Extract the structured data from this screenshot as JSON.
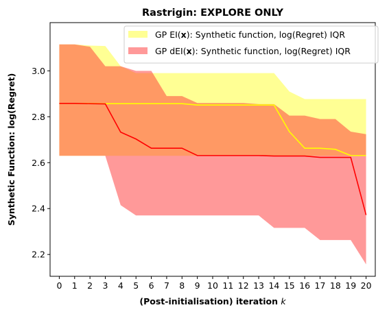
{
  "chart_data": {
    "type": "area",
    "title": "Rastrigin: EXPLORE ONLY",
    "xlabel": "(Post-initialisation) iteration",
    "xlabel_var": "k",
    "ylabel": "Synthetic Function: log(Regret)",
    "xlim": [
      -0.6,
      20.6
    ],
    "ylim": [
      2.105,
      3.21
    ],
    "x": [
      0,
      1,
      2,
      3,
      4,
      5,
      6,
      7,
      8,
      9,
      10,
      11,
      12,
      13,
      14,
      15,
      16,
      17,
      18,
      19,
      20
    ],
    "xticks": [
      0,
      1,
      2,
      3,
      4,
      5,
      6,
      7,
      8,
      9,
      10,
      11,
      12,
      13,
      14,
      15,
      16,
      17,
      18,
      19,
      20
    ],
    "yticks": [
      2.2,
      2.4,
      2.6,
      2.8,
      3.0
    ],
    "ytick_labels": [
      "2.2",
      "2.4",
      "2.6",
      "2.8",
      "3.0"
    ],
    "grid": false,
    "legend_position": "top-right",
    "series": [
      {
        "name_prefix": "GP EI(",
        "name_bold": "x",
        "name_suffix": "):   Synthetic function, log(Regret) IQR",
        "color": "#ffff00",
        "fill_color": "#ffff66",
        "fill_opacity": 0.7,
        "median": [
          2.858,
          2.858,
          2.858,
          2.857,
          2.857,
          2.857,
          2.857,
          2.857,
          2.857,
          2.851,
          2.851,
          2.851,
          2.851,
          2.851,
          2.851,
          2.735,
          2.663,
          2.663,
          2.658,
          2.631,
          2.631
        ],
        "upper": [
          3.115,
          3.115,
          3.11,
          3.108,
          3.02,
          2.99,
          2.99,
          2.99,
          2.99,
          2.99,
          2.99,
          2.99,
          2.99,
          2.99,
          2.99,
          2.91,
          2.877,
          2.877,
          2.877,
          2.877,
          2.877
        ],
        "lower": [
          2.63,
          2.63,
          2.63,
          2.63,
          2.63,
          2.63,
          2.63,
          2.63,
          2.63,
          2.63,
          2.63,
          2.63,
          2.63,
          2.63,
          2.63,
          2.63,
          2.63,
          2.63,
          2.63,
          2.63,
          2.63
        ]
      },
      {
        "name_prefix": "GP dEI(",
        "name_bold": "x",
        "name_suffix": "): Synthetic function, log(Regret) IQR",
        "color": "#ff0000",
        "fill_color": "#ff3333",
        "fill_opacity": 0.5,
        "median": [
          2.858,
          2.858,
          2.857,
          2.856,
          2.733,
          2.703,
          2.663,
          2.663,
          2.663,
          2.631,
          2.631,
          2.631,
          2.631,
          2.631,
          2.629,
          2.629,
          2.629,
          2.623,
          2.623,
          2.623,
          2.372
        ],
        "upper": [
          3.115,
          3.115,
          3.105,
          3.02,
          3.02,
          3.0,
          3.0,
          2.89,
          2.89,
          2.86,
          2.86,
          2.86,
          2.86,
          2.855,
          2.855,
          2.805,
          2.805,
          2.79,
          2.79,
          2.735,
          2.724
        ],
        "lower": [
          2.63,
          2.63,
          2.63,
          2.63,
          2.415,
          2.37,
          2.37,
          2.37,
          2.37,
          2.37,
          2.37,
          2.37,
          2.37,
          2.37,
          2.316,
          2.316,
          2.316,
          2.263,
          2.263,
          2.263,
          2.157
        ]
      }
    ]
  }
}
